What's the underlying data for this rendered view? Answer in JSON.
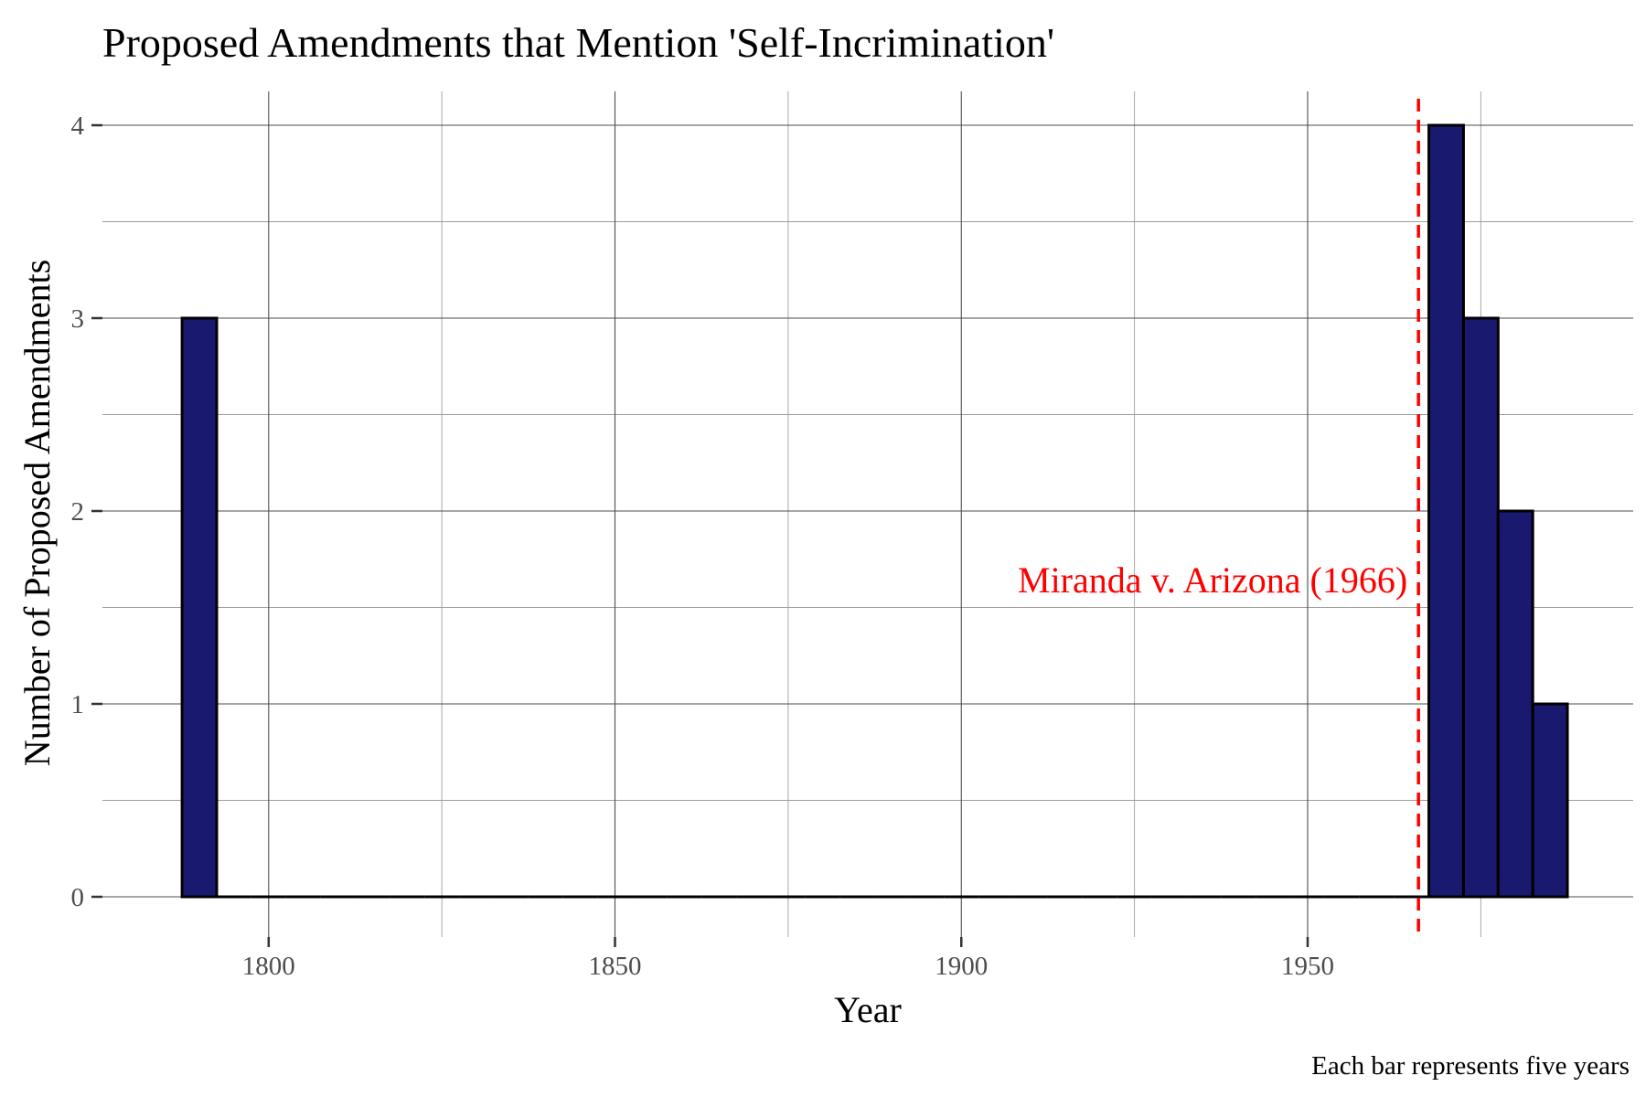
{
  "chart_data": {
    "type": "bar",
    "title": "Proposed Amendments that Mention 'Self-Incrimination'",
    "xlabel": "Year",
    "ylabel": "Number of Proposed Amendments",
    "caption": "Each bar represents five years",
    "bin_width": 5,
    "xlim": [
      1776,
      1997
    ],
    "ylim": [
      0,
      4.2
    ],
    "x_ticks": [
      1800,
      1850,
      1900,
      1950
    ],
    "x_tick_labels": [
      "1800",
      "1850",
      "1900",
      "1950"
    ],
    "y_ticks": [
      0,
      1,
      2,
      3,
      4
    ],
    "y_tick_labels": [
      "0",
      "1",
      "2",
      "3",
      "4"
    ],
    "grid": true,
    "bins": [
      {
        "start": 1787.5,
        "end": 1792.5,
        "value": 3
      },
      {
        "start": 1792.5,
        "end": 1797.5,
        "value": 0
      },
      {
        "start": 1797.5,
        "end": 1802.5,
        "value": 0
      },
      {
        "start": 1802.5,
        "end": 1807.5,
        "value": 0
      },
      {
        "start": 1807.5,
        "end": 1812.5,
        "value": 0
      },
      {
        "start": 1812.5,
        "end": 1817.5,
        "value": 0
      },
      {
        "start": 1817.5,
        "end": 1822.5,
        "value": 0
      },
      {
        "start": 1822.5,
        "end": 1827.5,
        "value": 0
      },
      {
        "start": 1827.5,
        "end": 1832.5,
        "value": 0
      },
      {
        "start": 1832.5,
        "end": 1837.5,
        "value": 0
      },
      {
        "start": 1837.5,
        "end": 1842.5,
        "value": 0
      },
      {
        "start": 1842.5,
        "end": 1847.5,
        "value": 0
      },
      {
        "start": 1847.5,
        "end": 1852.5,
        "value": 0
      },
      {
        "start": 1852.5,
        "end": 1857.5,
        "value": 0
      },
      {
        "start": 1857.5,
        "end": 1862.5,
        "value": 0
      },
      {
        "start": 1862.5,
        "end": 1867.5,
        "value": 0
      },
      {
        "start": 1867.5,
        "end": 1872.5,
        "value": 0
      },
      {
        "start": 1872.5,
        "end": 1877.5,
        "value": 0
      },
      {
        "start": 1877.5,
        "end": 1882.5,
        "value": 0
      },
      {
        "start": 1882.5,
        "end": 1887.5,
        "value": 0
      },
      {
        "start": 1887.5,
        "end": 1892.5,
        "value": 0
      },
      {
        "start": 1892.5,
        "end": 1897.5,
        "value": 0
      },
      {
        "start": 1897.5,
        "end": 1902.5,
        "value": 0
      },
      {
        "start": 1902.5,
        "end": 1907.5,
        "value": 0
      },
      {
        "start": 1907.5,
        "end": 1912.5,
        "value": 0
      },
      {
        "start": 1912.5,
        "end": 1917.5,
        "value": 0
      },
      {
        "start": 1917.5,
        "end": 1922.5,
        "value": 0
      },
      {
        "start": 1922.5,
        "end": 1927.5,
        "value": 0
      },
      {
        "start": 1927.5,
        "end": 1932.5,
        "value": 0
      },
      {
        "start": 1932.5,
        "end": 1937.5,
        "value": 0
      },
      {
        "start": 1937.5,
        "end": 1942.5,
        "value": 0
      },
      {
        "start": 1942.5,
        "end": 1947.5,
        "value": 0
      },
      {
        "start": 1947.5,
        "end": 1952.5,
        "value": 0
      },
      {
        "start": 1952.5,
        "end": 1957.5,
        "value": 0
      },
      {
        "start": 1957.5,
        "end": 1962.5,
        "value": 0
      },
      {
        "start": 1962.5,
        "end": 1967.5,
        "value": 0
      },
      {
        "start": 1967.5,
        "end": 1972.5,
        "value": 4
      },
      {
        "start": 1972.5,
        "end": 1977.5,
        "value": 3
      },
      {
        "start": 1977.5,
        "end": 1982.5,
        "value": 2
      },
      {
        "start": 1982.5,
        "end": 1987.5,
        "value": 1
      }
    ],
    "reference_line": {
      "x": 1966,
      "style": "dashed"
    },
    "annotation": {
      "text": "Miranda v. Arizona (1966)",
      "x": 1966,
      "y": 1.65,
      "anchor": "end"
    },
    "colors": {
      "bar_fill": "#191970",
      "bar_outline": "#000000",
      "reference": "#ff0000",
      "grid_major": "#4d4d4d",
      "grid_minor": "#9e9e9e",
      "tick_text": "#4d4d4d",
      "text": "#000000"
    }
  }
}
